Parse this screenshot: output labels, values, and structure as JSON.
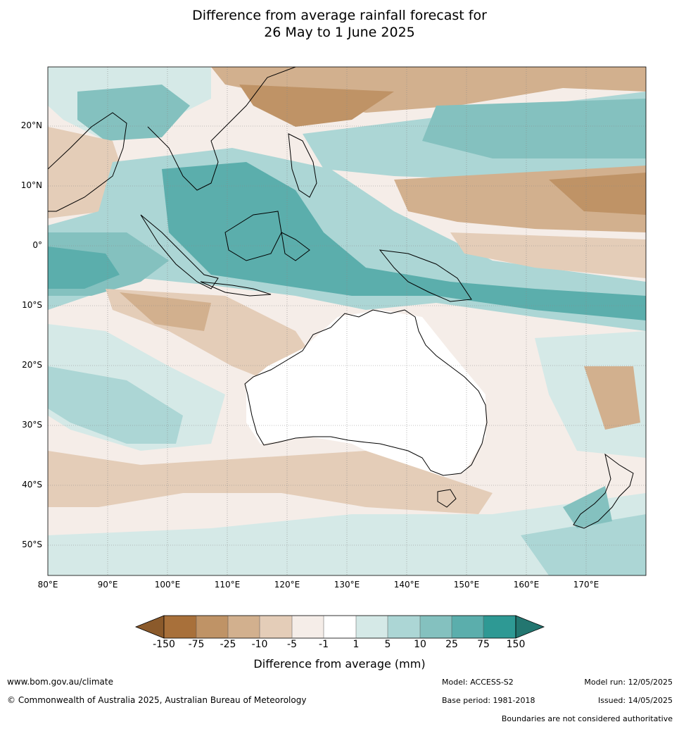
{
  "title": {
    "line1": "Difference from average rainfall forecast for",
    "line2": "26 May to 1 June 2025"
  },
  "map": {
    "lat_ticks": [
      "20°N",
      "10°N",
      "0°",
      "10°S",
      "20°S",
      "30°S",
      "40°S",
      "50°S"
    ],
    "lon_ticks": [
      "80°E",
      "90°E",
      "100°E",
      "110°E",
      "120°E",
      "130°E",
      "140°E",
      "150°E",
      "160°E",
      "170°E"
    ],
    "lon_range": [
      80,
      180
    ],
    "lat_range": [
      -55,
      30
    ]
  },
  "colorbar": {
    "labels": [
      "-150",
      "-75",
      "-25",
      "-10",
      "-5",
      "-1",
      "1",
      "5",
      "10",
      "25",
      "75",
      "150"
    ],
    "colors": [
      "#a8703a",
      "#bf9366",
      "#d2b08e",
      "#e4cdb8",
      "#f5ede8",
      "#ffffff",
      "#d5e9e7",
      "#acd6d5",
      "#84c1bf",
      "#5baeac",
      "#2e9994"
    ],
    "low_extend_color": "#8b5a2b",
    "high_extend_color": "#237670",
    "title": "Difference from average (mm)"
  },
  "footer": {
    "website": "www.bom.gov.au/climate",
    "copyright": "© Commonwealth of Australia 2025, Australian Bureau of Meteorology",
    "model": "Model: ACCESS-S2",
    "base_period": "Base period: 1981-2018",
    "model_run": "Model run: 12/05/2025",
    "issued": "Issued: 14/05/2025",
    "disclaimer": "Boundaries are not considered authoritative"
  }
}
